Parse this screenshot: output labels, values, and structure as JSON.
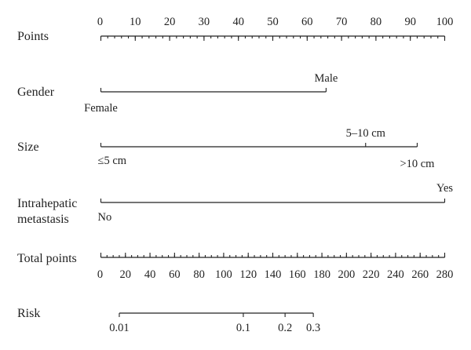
{
  "chart_data": {
    "type": "nomogram",
    "rows": [
      {
        "label": "Points",
        "kind": "scale",
        "min": 0,
        "max": 100,
        "major": [
          0,
          10,
          20,
          30,
          40,
          50,
          60,
          70,
          80,
          90,
          100
        ],
        "minor_step": 2,
        "labels": [
          "0",
          "10",
          "20",
          "30",
          "40",
          "50",
          "60",
          "70",
          "80",
          "90",
          "100"
        ]
      },
      {
        "label": "Gender",
        "kind": "variable",
        "levels": [
          {
            "name": "Female",
            "points": 0
          },
          {
            "name": "Male",
            "points": 65.5
          }
        ]
      },
      {
        "label": "Size",
        "kind": "variable",
        "levels": [
          {
            "name": "≤5 cm",
            "points": 0
          },
          {
            "name": "5–10 cm",
            "points": 77
          },
          {
            "name": ">10 cm",
            "points": 92
          }
        ]
      },
      {
        "label": "Intrahepatic metastasis",
        "label_lines": [
          "Intrahepatic",
          "metastasis"
        ],
        "kind": "variable",
        "levels": [
          {
            "name": "No",
            "points": 0
          },
          {
            "name": "Yes",
            "points": 100
          }
        ]
      },
      {
        "label": "Total points",
        "kind": "scale",
        "min": 0,
        "max": 280,
        "major": [
          0,
          20,
          40,
          60,
          80,
          100,
          120,
          140,
          160,
          180,
          200,
          220,
          240,
          260,
          280
        ],
        "minor_step": 5,
        "labels": [
          "0",
          "20",
          "40",
          "60",
          "80",
          "100",
          "120",
          "140",
          "160",
          "180",
          "200",
          "220",
          "240",
          "260",
          "280"
        ]
      },
      {
        "label": "Risk",
        "kind": "risk",
        "ticks": [
          {
            "label": "0.01",
            "value": 0.01,
            "total_points": 15
          },
          {
            "label": "0.1",
            "value": 0.1,
            "total_points": 116
          },
          {
            "label": "0.2",
            "value": 0.2,
            "total_points": 150
          },
          {
            "label": "0.3",
            "value": 0.3,
            "total_points": 173
          }
        ]
      }
    ]
  }
}
